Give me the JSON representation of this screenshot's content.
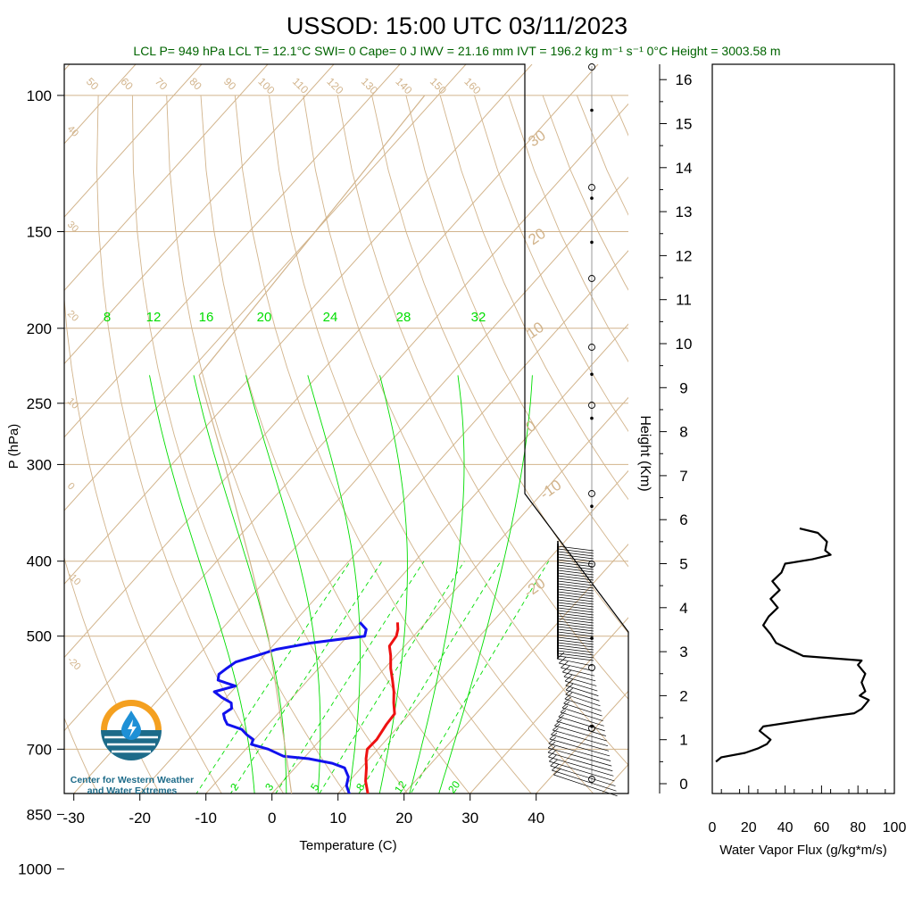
{
  "header": {
    "title": "USSOD: 15:00 UTC 03/11/2023",
    "subtitle": "LCL P= 949 hPa  LCL T= 12.1°C  SWI= 0  Cape= 0 J  IWV = 21.16 mm  IVT = 196.2 kg m⁻¹ s⁻¹  0°C Height = 3003.58 m"
  },
  "logo": {
    "line1": "Center for Western Weather",
    "line2": "and Water Extremes"
  },
  "colors": {
    "temperature": "#ee1111",
    "dewpoint": "#1111ee",
    "isotherm": "#d2b48c",
    "mixing_ratio": "#00dd00",
    "subtitle": "#006400"
  },
  "chart_data": [
    {
      "type": "line",
      "chart": "skew-t",
      "xlabel": "Temperature (C)",
      "ylabel": "P (hPa)",
      "right_axis_label": "Height (Km)",
      "x_ticks": [
        -30,
        -20,
        -10,
        0,
        10,
        20,
        30,
        40
      ],
      "y_ticks": [
        100,
        150,
        200,
        250,
        300,
        400,
        500,
        700,
        850,
        1000
      ],
      "height_ticks": [
        0,
        1,
        2,
        3,
        4,
        5,
        6,
        7,
        8,
        9,
        10,
        11,
        12,
        13,
        14,
        15,
        16
      ],
      "isotherm_labels": [
        -20,
        -10,
        0,
        10,
        20,
        30
      ],
      "adiabat_labels": [
        50,
        60,
        70,
        80,
        90,
        100,
        110,
        120,
        130,
        140,
        150,
        160
      ],
      "adiabat_side_labels": [
        40,
        30,
        20,
        10,
        0,
        -10,
        -20
      ],
      "mixing_ratio_top_labels": [
        8,
        12,
        16,
        20,
        24,
        28,
        32
      ],
      "mixing_ratio_bottom_labels": [
        2,
        3,
        5,
        8,
        12,
        20
      ],
      "series": [
        {
          "name": "Temperature",
          "p": [
            950,
            900,
            850,
            800,
            770,
            740,
            720,
            700,
            680,
            650,
            630,
            610,
            590,
            570,
            550,
            530,
            515,
            500,
            490,
            480
          ],
          "t": [
            15.2,
            15.0,
            14.5,
            14.6,
            12.5,
            10.8,
            9.5,
            8.4,
            8.5,
            7.9,
            7.7,
            6.1,
            4.6,
            2.8,
            0.9,
            -0.8,
            -2.3,
            -2.6,
            -3.3,
            -4.3
          ]
        },
        {
          "name": "Dewpoint",
          "p": [
            950,
            920,
            900,
            870,
            850,
            820,
            800,
            780,
            760,
            740,
            730,
            720,
            715,
            700,
            690,
            680,
            670,
            660,
            650,
            640,
            630,
            620,
            610,
            600,
            590,
            580,
            570,
            560,
            550,
            540,
            530,
            520,
            510,
            500,
            490,
            480
          ],
          "t": [
            15.5,
            15.2,
            15.0,
            14.7,
            14.5,
            13.0,
            11.8,
            10.2,
            9.3,
            7.5,
            5.0,
            0.8,
            -3.3,
            -6.6,
            -9.8,
            -10.2,
            -11.9,
            -13.3,
            -16.2,
            -17.3,
            -18.2,
            -17.7,
            -18.5,
            -20.7,
            -22.6,
            -20.2,
            -23.6,
            -24.3,
            -23.9,
            -23.4,
            -21.1,
            -19.0,
            -14.5,
            -7.4,
            -8.1,
            -10.0
          ]
        }
      ]
    },
    {
      "type": "line",
      "xlabel": "Water Vapor Flux (g/kg*m/s)",
      "x_ticks": [
        0,
        20,
        40,
        60,
        80,
        100
      ],
      "xlim": [
        0,
        100
      ],
      "ylim": [
        -0.3,
        16.5
      ],
      "series": [
        {
          "name": "Water Vapor Flux",
          "height_km": [
            0.5,
            0.6,
            0.7,
            0.8,
            0.9,
            1.0,
            1.2,
            1.3,
            1.5,
            1.6,
            1.7,
            1.8,
            1.9,
            2.0,
            2.1,
            2.3,
            2.5,
            2.7,
            2.8,
            2.9,
            3.0,
            3.2,
            3.4,
            3.6,
            3.8,
            4.0,
            4.2,
            4.4,
            4.6,
            4.8,
            5.0,
            5.1,
            5.2,
            5.3,
            5.5,
            5.7,
            5.8
          ],
          "flux": [
            2,
            5,
            18,
            25,
            30,
            32,
            26,
            28,
            60,
            78,
            82,
            84,
            86,
            81,
            84,
            82,
            84,
            80,
            82,
            50,
            45,
            35,
            32,
            28,
            31,
            36,
            32,
            37,
            33,
            38,
            40,
            55,
            65,
            62,
            63,
            58,
            48
          ]
        }
      ]
    }
  ]
}
